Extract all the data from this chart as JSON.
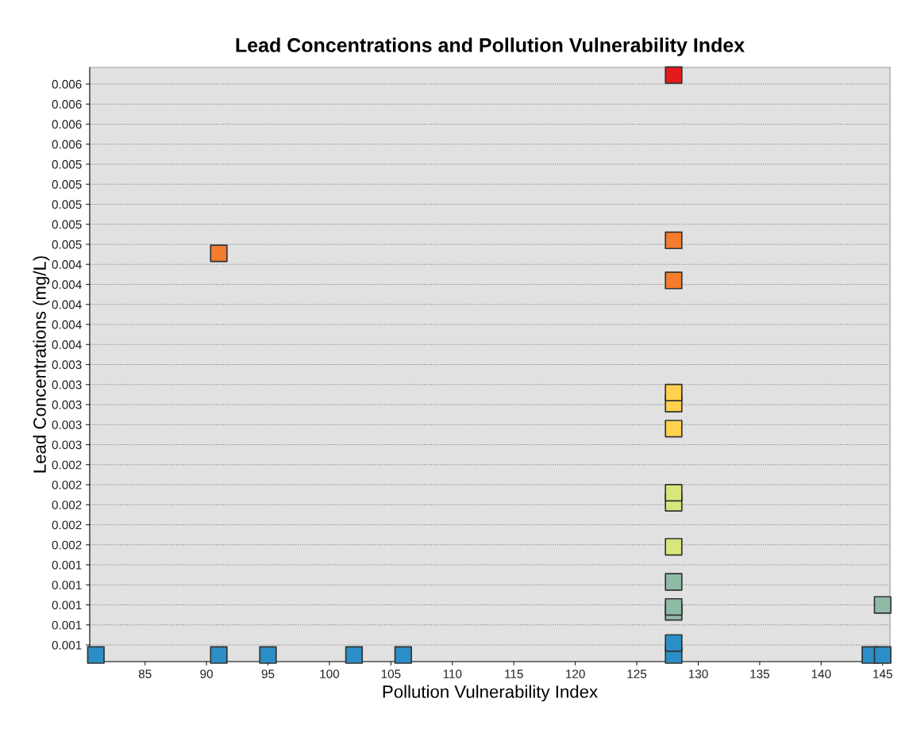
{
  "chart_data": {
    "type": "scatter",
    "title": "Lead Concentrations and Pollution Vulnerability Index",
    "xlabel": "Pollution Vulnerability Index",
    "ylabel": "Lead Concentrations (mg/L)",
    "series": [
      {
        "x": [
          81,
          91,
          95,
          102,
          106,
          128,
          144,
          145,
          128,
          128,
          128,
          145,
          128,
          128,
          128,
          128,
          128,
          128,
          128,
          128,
          128,
          91,
          128
        ],
        "values": [
          0.0005,
          0.0005,
          0.0005,
          0.0005,
          0.0005,
          0.0005,
          0.0005,
          0.0005,
          0.00062,
          0.00093,
          0.00098,
          0.001,
          0.00123,
          0.00158,
          0.00202,
          0.00212,
          0.00276,
          0.00301,
          0.00312,
          0.00424,
          0.00464,
          0.00451,
          0.00629
        ],
        "colors": [
          "#2b8ec6",
          "#2b8ec6",
          "#2b8ec6",
          "#2b8ec6",
          "#2b8ec6",
          "#2b8ec6",
          "#2b8ec6",
          "#2b8ec6",
          "#2b8ec6",
          "#8fbba6",
          "#8fbba6",
          "#8fbba6",
          "#8fbba6",
          "#d9e67c",
          "#d9e67c",
          "#d9e67c",
          "#ffd24f",
          "#ffd24f",
          "#ffd24f",
          "#f47c2c",
          "#f47c2c",
          "#f47c2c",
          "#e31a1c"
        ]
      }
    ],
    "marker": "square",
    "grid": "y",
    "legend": false,
    "xlim": [
      80.5,
      145.6
    ],
    "xticks": [
      85,
      90,
      95,
      100,
      105,
      110,
      115,
      120,
      125,
      130,
      135,
      140,
      145
    ],
    "ylim": [
      0.000434,
      0.006366
    ],
    "yticks": [
      {
        "value": 0.0006,
        "label": "0.001"
      },
      {
        "value": 0.0008,
        "label": "0.001"
      },
      {
        "value": 0.001,
        "label": "0.001"
      },
      {
        "value": 0.0012,
        "label": "0.001"
      },
      {
        "value": 0.0014,
        "label": "0.001"
      },
      {
        "value": 0.0016,
        "label": "0.002"
      },
      {
        "value": 0.0018,
        "label": "0.002"
      },
      {
        "value": 0.002,
        "label": "0.002"
      },
      {
        "value": 0.0022,
        "label": "0.002"
      },
      {
        "value": 0.0024,
        "label": "0.002"
      },
      {
        "value": 0.0026,
        "label": "0.003"
      },
      {
        "value": 0.0028,
        "label": "0.003"
      },
      {
        "value": 0.003,
        "label": "0.003"
      },
      {
        "value": 0.0032,
        "label": "0.003"
      },
      {
        "value": 0.0034,
        "label": "0.003"
      },
      {
        "value": 0.0036,
        "label": "0.004"
      },
      {
        "value": 0.0038,
        "label": "0.004"
      },
      {
        "value": 0.004,
        "label": "0.004"
      },
      {
        "value": 0.0042,
        "label": "0.004"
      },
      {
        "value": 0.0044,
        "label": "0.004"
      },
      {
        "value": 0.0046,
        "label": "0.005"
      },
      {
        "value": 0.0048,
        "label": "0.005"
      },
      {
        "value": 0.005,
        "label": "0.005"
      },
      {
        "value": 0.0052,
        "label": "0.005"
      },
      {
        "value": 0.0054,
        "label": "0.005"
      },
      {
        "value": 0.0056,
        "label": "0.006"
      },
      {
        "value": 0.0058,
        "label": "0.006"
      },
      {
        "value": 0.006,
        "label": "0.006"
      },
      {
        "value": 0.0062,
        "label": "0.006"
      }
    ]
  }
}
